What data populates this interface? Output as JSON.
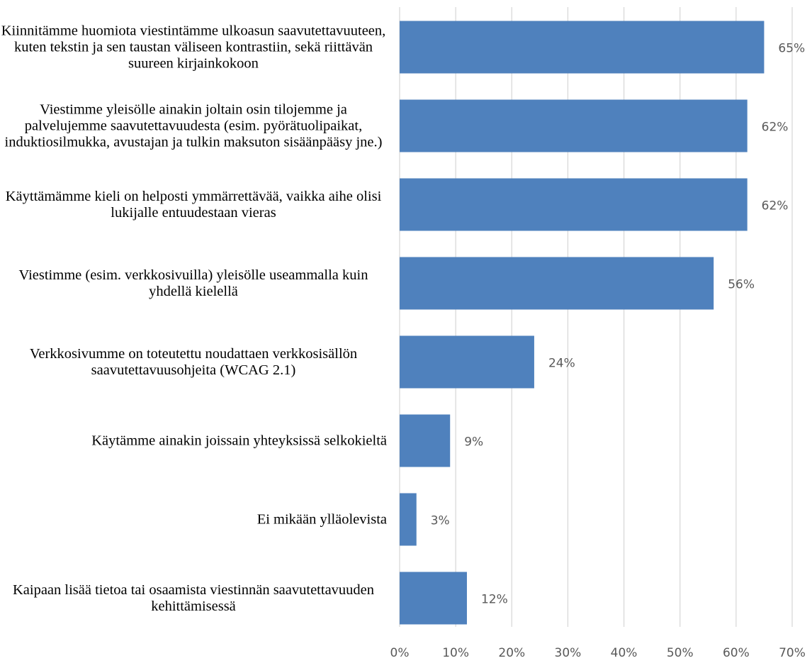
{
  "chart_data": {
    "type": "hbar",
    "categories": [
      "Kiinnitämme huomiota viestintämme ulkoasun saavutettavuuteen, kuten tekstin ja sen taustan väliseen kontrastiin, sekä riittävän suureen kirjainkokoon",
      "Viestimme yleisölle ainakin joltain osin tilojemme ja palvelujemme saavutettavuudesta (esim. pyörätuolipaikat, induktiosilmukka, avustajan ja tulkin maksuton sisäänpääsy jne.)",
      "Käyttämämme kieli on helposti ymmärrettävää, vaikka aihe olisi lukijalle entuudestaan vieras",
      "Viestimme (esim. verkkosivuilla) yleisölle useammalla kuin yhdellä kielellä",
      "Verkkosivumme on toteutettu noudattaen verkkosisällön saavutettavuusohjeita (WCAG 2.1)",
      "Käytämme ainakin joissain yhteyksissä selkokieltä",
      "Ei mikään ylläolevista",
      "Kaipaan lisää tietoa tai osaamista viestinnän saavutettavuuden kehittämisessä"
    ],
    "values": [
      65,
      62,
      62,
      56,
      24,
      9,
      3,
      12
    ],
    "value_labels": [
      "65%",
      "62%",
      "62%",
      "56%",
      "24%",
      "9%",
      "3%",
      "12%"
    ],
    "color": "#4f81bd",
    "xlim": [
      0,
      70
    ],
    "xticks": [
      {
        "value": 0,
        "label": "0%"
      },
      {
        "value": 10,
        "label": "10%"
      },
      {
        "value": 20,
        "label": "20%"
      },
      {
        "value": 30,
        "label": "30%"
      },
      {
        "value": 40,
        "label": "40%"
      },
      {
        "value": 50,
        "label": "50%"
      },
      {
        "value": 60,
        "label": "60%"
      },
      {
        "value": 70,
        "label": "70%"
      }
    ],
    "grid": true
  }
}
